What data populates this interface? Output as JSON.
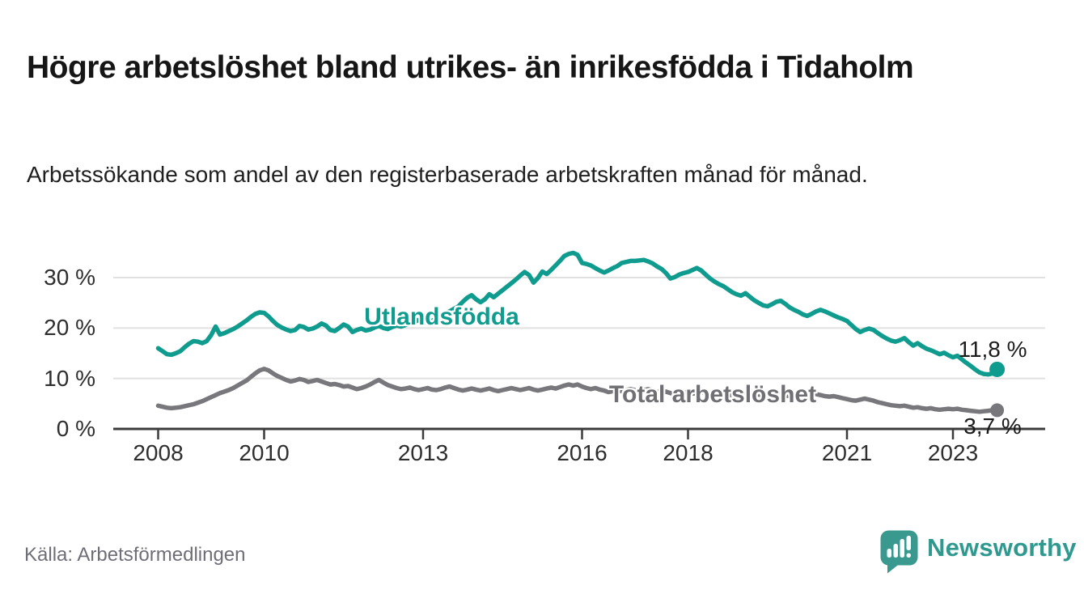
{
  "header": {
    "title": "Högre arbetslöshet bland utrikes- än inrikesfödda i Tidaholm",
    "subtitle": "Arbetssökande som andel av den registerbaserade arbetskraften månad för månad."
  },
  "chart_data": {
    "type": "line",
    "title": "Högre arbetslöshet bland utrikes- än inrikesfödda i Tidaholm",
    "xlabel": "",
    "ylabel": "Arbetssökande som andel av den registerbaserade arbetskraften",
    "x_start": "2008-01",
    "x_end": "2023-11",
    "points_per_year": 12,
    "x_ticks": [
      "2008",
      "2010",
      "2013",
      "2016",
      "2018",
      "2021",
      "2023"
    ],
    "y_ticks": [
      {
        "value": 0,
        "label": "0 %"
      },
      {
        "value": 10,
        "label": "10 %"
      },
      {
        "value": 20,
        "label": "20 %"
      },
      {
        "value": 30,
        "label": "30 %"
      }
    ],
    "ylim": [
      0,
      36
    ],
    "grid": "horizontal",
    "legend_position": "inline-labels",
    "colors": {
      "axis": "#3b3b3b",
      "gridline": "#e1e1e1",
      "tick_text": "#2e2e2e"
    },
    "series": [
      {
        "name": "Utlandsfödda",
        "color": "#0f9b8e",
        "end_label": "11,8 %",
        "end_value": 11.8,
        "values": [
          16.0,
          15.4,
          14.8,
          14.7,
          15.0,
          15.4,
          16.2,
          16.9,
          17.4,
          17.3,
          17.0,
          17.4,
          18.6,
          20.3,
          18.7,
          19.0,
          19.4,
          19.8,
          20.3,
          20.9,
          21.5,
          22.2,
          22.8,
          23.1,
          23.0,
          22.3,
          21.4,
          20.6,
          20.1,
          19.7,
          19.4,
          19.6,
          20.4,
          20.2,
          19.7,
          19.9,
          20.3,
          20.9,
          20.5,
          19.6,
          19.4,
          20.0,
          20.7,
          20.3,
          19.2,
          19.6,
          19.9,
          19.5,
          19.7,
          20.1,
          20.4,
          20.0,
          19.8,
          20.2,
          20.5,
          20.3,
          20.6,
          20.9,
          21.2,
          21.6,
          21.3,
          21.0,
          21.4,
          21.9,
          22.4,
          22.9,
          23.3,
          23.8,
          24.3,
          25.2,
          26.0,
          26.5,
          25.7,
          25.1,
          25.7,
          26.7,
          26.1,
          26.8,
          27.5,
          28.2,
          28.9,
          29.6,
          30.4,
          31.1,
          30.5,
          29.0,
          29.9,
          31.2,
          30.7,
          31.5,
          32.4,
          33.3,
          34.3,
          34.7,
          34.9,
          34.5,
          32.9,
          32.7,
          32.4,
          31.9,
          31.4,
          31.0,
          31.4,
          31.9,
          32.3,
          32.9,
          33.1,
          33.3,
          33.3,
          33.4,
          33.5,
          33.2,
          32.8,
          32.2,
          31.7,
          30.9,
          29.8,
          30.1,
          30.6,
          30.9,
          31.1,
          31.5,
          31.9,
          31.4,
          30.6,
          29.8,
          29.2,
          28.7,
          28.3,
          27.7,
          27.1,
          26.7,
          26.4,
          26.9,
          26.2,
          25.5,
          25.0,
          24.5,
          24.3,
          24.7,
          25.2,
          25.4,
          24.8,
          24.1,
          23.6,
          23.2,
          22.7,
          22.4,
          22.8,
          23.3,
          23.6,
          23.3,
          22.9,
          22.5,
          22.1,
          21.8,
          21.4,
          20.6,
          19.8,
          19.2,
          19.6,
          19.9,
          19.6,
          19.0,
          18.4,
          17.9,
          17.5,
          17.3,
          17.6,
          18.0,
          17.2,
          16.5,
          17.0,
          16.4,
          15.9,
          15.6,
          15.2,
          14.8,
          15.1,
          14.6,
          14.2,
          14.5,
          13.8,
          13.1,
          12.5,
          11.8,
          11.2,
          10.9,
          10.8,
          11.0,
          11.8
        ]
      },
      {
        "name": "Total arbetslöshet",
        "color": "#77777c",
        "end_label": "3,7 %",
        "end_value": 3.7,
        "values": [
          4.6,
          4.4,
          4.2,
          4.1,
          4.2,
          4.3,
          4.5,
          4.7,
          4.9,
          5.2,
          5.5,
          5.9,
          6.3,
          6.7,
          7.1,
          7.4,
          7.7,
          8.1,
          8.6,
          9.1,
          9.6,
          10.3,
          11.0,
          11.6,
          11.9,
          11.6,
          11.0,
          10.5,
          10.1,
          9.7,
          9.4,
          9.6,
          9.9,
          9.7,
          9.3,
          9.5,
          9.7,
          9.4,
          9.1,
          8.8,
          8.9,
          8.7,
          8.4,
          8.5,
          8.2,
          7.9,
          8.1,
          8.4,
          8.8,
          9.3,
          9.7,
          9.2,
          8.7,
          8.4,
          8.1,
          7.9,
          8.0,
          8.2,
          7.9,
          7.7,
          7.9,
          8.1,
          7.8,
          7.7,
          7.9,
          8.2,
          8.4,
          8.1,
          7.8,
          7.6,
          7.8,
          8.0,
          7.8,
          7.6,
          7.8,
          8.0,
          7.7,
          7.5,
          7.7,
          7.9,
          8.1,
          7.9,
          7.7,
          7.9,
          8.1,
          7.8,
          7.6,
          7.8,
          8.0,
          8.2,
          8.0,
          8.3,
          8.6,
          8.8,
          8.6,
          8.8,
          8.4,
          8.1,
          7.9,
          8.1,
          7.8,
          7.6,
          7.3,
          7.5,
          7.7,
          7.5,
          7.7,
          7.9,
          7.7,
          7.5,
          7.7,
          7.9,
          7.6,
          7.4,
          7.2,
          7.4,
          7.1,
          6.9,
          7.1,
          7.3,
          7.2,
          7.0,
          7.1,
          7.3,
          7.1,
          6.9,
          6.8,
          7.0,
          6.8,
          6.6,
          6.8,
          7.0,
          6.9,
          6.7,
          6.8,
          7.0,
          6.8,
          6.6,
          6.5,
          6.7,
          6.9,
          6.7,
          6.5,
          6.6,
          6.7,
          6.5,
          6.6,
          6.9,
          7.1,
          6.9,
          6.7,
          6.5,
          6.4,
          6.5,
          6.3,
          6.1,
          5.9,
          5.7,
          5.6,
          5.8,
          6.0,
          5.8,
          5.6,
          5.3,
          5.1,
          4.9,
          4.7,
          4.6,
          4.5,
          4.6,
          4.4,
          4.2,
          4.3,
          4.1,
          4.0,
          4.1,
          3.9,
          3.8,
          3.9,
          4.0,
          3.9,
          4.0,
          3.8,
          3.7,
          3.6,
          3.5,
          3.4,
          3.5,
          3.6,
          3.7,
          3.7
        ]
      }
    ]
  },
  "footer": {
    "source": "Källa: Arbetsförmedlingen",
    "logo_text": "Newsworthy",
    "logo_color": "#2f998f"
  }
}
